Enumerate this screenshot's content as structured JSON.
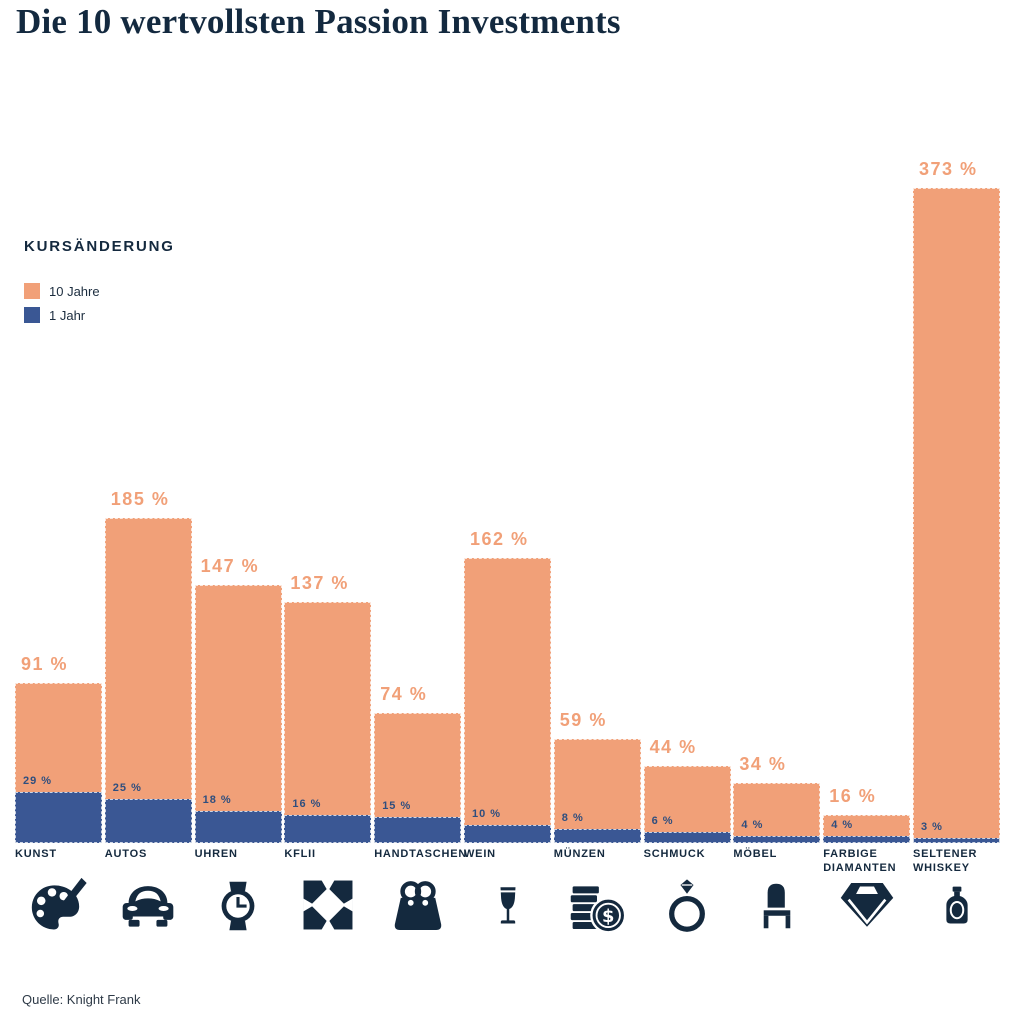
{
  "title": "Die 10 wertvollsten Passion Investments",
  "legend": {
    "heading": "KURSÄNDERUNG",
    "items": [
      {
        "label": "10 Jahre",
        "color": "#f1a078"
      },
      {
        "label": "1 Jahr",
        "color": "#3a5794"
      }
    ]
  },
  "source": "Quelle: Knight Frank",
  "unit_suffix": " %",
  "colors": {
    "bar_10y": "#f1a078",
    "bar_1y": "#3a5794",
    "navy_text": "#14293e",
    "blue_value_text": "#2f4e7e",
    "background": "#ffffff"
  },
  "chart_data": {
    "type": "bar",
    "title": "Die 10 wertvollsten Passion Investments",
    "legend_title": "KURSÄNDERUNG",
    "legend_position": "upper-left",
    "grid": false,
    "axes_visible": false,
    "value_unit": "%",
    "categories": [
      "KUNST",
      "AUTOS",
      "UHREN",
      "KFLII",
      "HANDTASCHEN",
      "WEIN",
      "MÜNZEN",
      "SCHMUCK",
      "MÖBEL",
      "FARBIGE DIAMANTEN",
      "SELTENER WHISKEY"
    ],
    "icons": [
      "palette-icon",
      "car-icon",
      "watch-icon",
      "kflii-icon",
      "handbag-icon",
      "wine-glass-icon",
      "coins-icon",
      "ring-icon",
      "chair-icon",
      "diamond-icon",
      "whiskey-bottle-icon"
    ],
    "series": [
      {
        "name": "10 Jahre",
        "color": "#f1a078",
        "values": [
          91,
          185,
          147,
          137,
          74,
          162,
          59,
          44,
          34,
          16,
          373
        ]
      },
      {
        "name": "1 Jahr",
        "color": "#3a5794",
        "values": [
          29,
          25,
          18,
          16,
          15,
          10,
          8,
          6,
          4,
          4,
          3
        ]
      }
    ]
  }
}
